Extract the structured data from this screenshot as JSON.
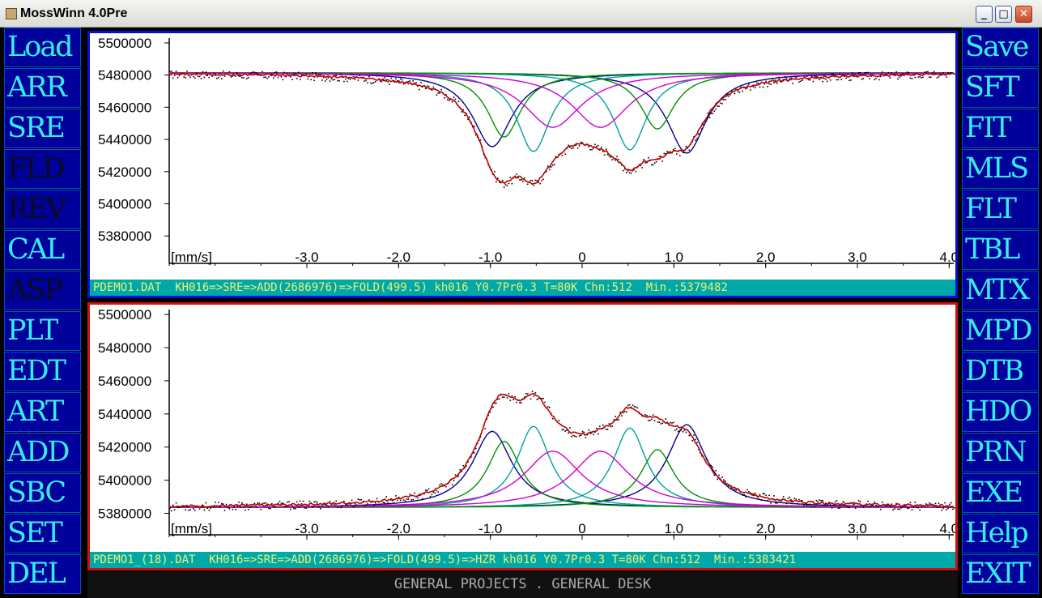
{
  "window": {
    "title": "MossWinn 4.0Pre",
    "minimize_glyph": "_",
    "maximize_glyph": "□",
    "close_glyph": "✕"
  },
  "left_menu": [
    {
      "label": "Load",
      "enabled": true
    },
    {
      "label": "ARR",
      "enabled": true
    },
    {
      "label": "SRE",
      "enabled": true
    },
    {
      "label": "FLD",
      "enabled": false
    },
    {
      "label": "REV",
      "enabled": false
    },
    {
      "label": "CAL",
      "enabled": true
    },
    {
      "label": "ASP",
      "enabled": false
    },
    {
      "label": "PLT",
      "enabled": true
    },
    {
      "label": "EDT",
      "enabled": true
    },
    {
      "label": "ART",
      "enabled": true
    },
    {
      "label": "ADD",
      "enabled": true
    },
    {
      "label": "SBC",
      "enabled": true
    },
    {
      "label": "SET",
      "enabled": true
    },
    {
      "label": "DEL",
      "enabled": true
    }
  ],
  "right_menu": [
    {
      "label": "Save",
      "enabled": true
    },
    {
      "label": "SFT",
      "enabled": true
    },
    {
      "label": "FIT",
      "enabled": true
    },
    {
      "label": "MLS",
      "enabled": true
    },
    {
      "label": "FLT",
      "enabled": true
    },
    {
      "label": "TBL",
      "enabled": true
    },
    {
      "label": "MTX",
      "enabled": true
    },
    {
      "label": "MPD",
      "enabled": true
    },
    {
      "label": "DTB",
      "enabled": true
    },
    {
      "label": "HDO",
      "enabled": true
    },
    {
      "label": "PRN",
      "enabled": true
    },
    {
      "label": "EXE",
      "enabled": true
    },
    {
      "label": "Help",
      "enabled": true
    },
    {
      "label": "EXIT",
      "enabled": true
    }
  ],
  "colors": {
    "fit": "#c00000",
    "comp1": "#000090",
    "comp2": "#00a0a0",
    "comp3": "#009000",
    "comp4": "#d000d0",
    "data": "#000000"
  },
  "plots": [
    {
      "status": "PDEMO1.DAT  KH016=>SRE=>ADD(2686976)=>FOLD(499.5) kh016 Y0.7Pr0.3 T=80K Chn:512  Min.:5379482",
      "unit_label": "[mm/s]",
      "y_ticks": [
        "5500000",
        "5480000",
        "5460000",
        "5440000",
        "5420000",
        "5400000",
        "5380000"
      ],
      "x_ticks": [
        "-3.0",
        "-2.0",
        "-1.0",
        "0",
        "1.0",
        "2.0",
        "3.0",
        "4.0"
      ],
      "chart_data": {
        "type": "line",
        "mode": "transmission",
        "xlabel": "[mm/s]",
        "xlim": [
          -4.5,
          4.05
        ],
        "ylim": [
          5366000,
          5503000
        ],
        "baseline": 5481500,
        "fit_series": [
          {
            "name": "",
            "color": "#c00000"
          }
        ],
        "components": [
          {
            "name": "",
            "center": -0.98,
            "width": 0.26,
            "depth": 46000,
            "color": "#000090"
          },
          {
            "name": "",
            "center": 1.14,
            "width": 0.26,
            "depth": 50000,
            "color": "#000090"
          },
          {
            "name": "",
            "center": -0.53,
            "width": 0.22,
            "depth": 49000,
            "color": "#00a0a0"
          },
          {
            "name": "",
            "center": 0.52,
            "width": 0.22,
            "depth": 48000,
            "color": "#00a0a0"
          },
          {
            "name": "",
            "center": -0.85,
            "width": 0.22,
            "depth": 40000,
            "color": "#009000"
          },
          {
            "name": "",
            "center": 0.82,
            "width": 0.22,
            "depth": 35000,
            "color": "#009000"
          },
          {
            "name": "",
            "center": -0.32,
            "width": 0.38,
            "depth": 34000,
            "color": "#d000d0"
          },
          {
            "name": "",
            "center": 0.2,
            "width": 0.38,
            "depth": 34000,
            "color": "#d000d0"
          }
        ]
      }
    },
    {
      "status": "PDEMO1_(18).DAT  KH016=>SRE=>ADD(2686976)=>FOLD(499.5)=>HZR kh016 Y0.7Pr0.3 T=80K Chn:512  Min.:5383421",
      "unit_label": "[mm/s]",
      "y_ticks": [
        "5500000",
        "5480000",
        "5460000",
        "5440000",
        "5420000",
        "5400000",
        "5380000"
      ],
      "x_ticks": [
        "-3.0",
        "-2.0",
        "-1.0",
        "0",
        "1.0",
        "2.0",
        "3.0",
        "4.0"
      ],
      "chart_data": {
        "type": "line",
        "mode": "emission",
        "xlabel": "[mm/s]",
        "xlim": [
          -4.5,
          4.05
        ],
        "ylim": [
          5370000,
          5503000
        ],
        "baseline": 5383500,
        "fit_series": [
          {
            "name": "",
            "color": "#c00000"
          }
        ],
        "components": [
          {
            "name": "",
            "center": -0.98,
            "width": 0.26,
            "depth": 46000,
            "color": "#000090"
          },
          {
            "name": "",
            "center": 1.14,
            "width": 0.26,
            "depth": 50000,
            "color": "#000090"
          },
          {
            "name": "",
            "center": -0.53,
            "width": 0.22,
            "depth": 49000,
            "color": "#00a0a0"
          },
          {
            "name": "",
            "center": 0.52,
            "width": 0.22,
            "depth": 48000,
            "color": "#00a0a0"
          },
          {
            "name": "",
            "center": -0.85,
            "width": 0.22,
            "depth": 40000,
            "color": "#009000"
          },
          {
            "name": "",
            "center": 0.82,
            "width": 0.22,
            "depth": 35000,
            "color": "#009000"
          },
          {
            "name": "",
            "center": -0.32,
            "width": 0.38,
            "depth": 34000,
            "color": "#d000d0"
          },
          {
            "name": "",
            "center": 0.2,
            "width": 0.38,
            "depth": 34000,
            "color": "#d000d0"
          }
        ]
      }
    }
  ],
  "bottom_status": "GENERAL PROJECTS . GENERAL DESK"
}
